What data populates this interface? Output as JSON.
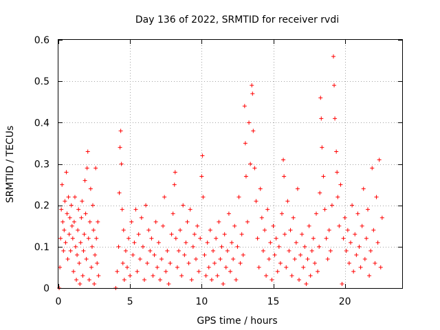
{
  "chart_data": {
    "type": "scatter",
    "title": "Day 136 of 2022, SRMTID for receiver rvdi",
    "xlabel": "GPS time / hours",
    "ylabel": "SRMTID / TECUs",
    "xlim": [
      0,
      24
    ],
    "ylim": [
      0,
      0.6
    ],
    "xticks": [
      0,
      5,
      10,
      15,
      20
    ],
    "yticks": [
      0,
      0.1,
      0.2,
      0.3,
      0.4,
      0.5,
      0.6
    ],
    "xtick_labels": [
      "0",
      "5",
      "10",
      "15",
      "20"
    ],
    "ytick_labels": [
      "0",
      "0.1",
      "0.2",
      "0.3",
      "0.4",
      "0.5",
      "0.6"
    ],
    "grid": true,
    "marker": "+",
    "color": "#ff0000",
    "series": [
      {
        "name": "SRMTID",
        "points": [
          [
            0.05,
            0.0
          ],
          [
            0.1,
            0.05
          ],
          [
            0.15,
            0.12
          ],
          [
            0.2,
            0.19
          ],
          [
            0.25,
            0.25
          ],
          [
            0.3,
            0.16
          ],
          [
            0.35,
            0.09
          ],
          [
            0.4,
            0.14
          ],
          [
            0.45,
            0.21
          ],
          [
            0.5,
            0.11
          ],
          [
            0.55,
            0.28
          ],
          [
            0.6,
            0.18
          ],
          [
            0.65,
            0.07
          ],
          [
            0.7,
            0.22
          ],
          [
            0.75,
            0.13
          ],
          [
            0.8,
            0.17
          ],
          [
            0.85,
            0.09
          ],
          [
            0.9,
            0.2
          ],
          [
            0.95,
            0.15
          ],
          [
            1.0,
            0.12
          ],
          [
            1.05,
            0.04
          ],
          [
            1.1,
            0.16
          ],
          [
            1.15,
            0.22
          ],
          [
            1.2,
            0.1
          ],
          [
            1.25,
            0.02
          ],
          [
            1.3,
            0.08
          ],
          [
            1.35,
            0.14
          ],
          [
            1.4,
            0.19
          ],
          [
            1.45,
            0.06
          ],
          [
            1.5,
            0.01
          ],
          [
            1.55,
            0.11
          ],
          [
            1.6,
            0.17
          ],
          [
            1.65,
            0.21
          ],
          [
            1.7,
            0.03
          ],
          [
            1.75,
            0.09
          ],
          [
            1.8,
            0.13
          ],
          [
            1.85,
            0.26
          ],
          [
            1.9,
            0.18
          ],
          [
            1.95,
            0.07
          ],
          [
            2.0,
            0.29
          ],
          [
            2.05,
            0.33
          ],
          [
            2.1,
            0.12
          ],
          [
            2.15,
            0.02
          ],
          [
            2.2,
            0.16
          ],
          [
            2.25,
            0.24
          ],
          [
            2.3,
            0.05
          ],
          [
            2.35,
            0.1
          ],
          [
            2.4,
            0.2
          ],
          [
            2.45,
            0.14
          ],
          [
            2.5,
            0.01
          ],
          [
            2.55,
            0.08
          ],
          [
            2.6,
            0.29
          ],
          [
            2.65,
            0.12
          ],
          [
            2.7,
            0.06
          ],
          [
            2.75,
            0.16
          ],
          [
            2.8,
            0.03
          ],
          [
            4.0,
            0.0
          ],
          [
            4.1,
            0.04
          ],
          [
            4.2,
            0.1
          ],
          [
            4.25,
            0.23
          ],
          [
            4.3,
            0.34
          ],
          [
            4.35,
            0.38
          ],
          [
            4.4,
            0.3
          ],
          [
            4.45,
            0.19
          ],
          [
            4.5,
            0.06
          ],
          [
            4.55,
            0.14
          ],
          [
            4.6,
            0.02
          ],
          [
            4.7,
            0.09
          ],
          [
            4.8,
            0.05
          ],
          [
            4.9,
            0.12
          ],
          [
            5.0,
            0.03
          ],
          [
            5.1,
            0.16
          ],
          [
            5.2,
            0.08
          ],
          [
            5.3,
            0.11
          ],
          [
            5.4,
            0.19
          ],
          [
            5.5,
            0.04
          ],
          [
            5.6,
            0.13
          ],
          [
            5.7,
            0.07
          ],
          [
            5.8,
            0.17
          ],
          [
            5.9,
            0.1
          ],
          [
            6.0,
            0.02
          ],
          [
            6.1,
            0.2
          ],
          [
            6.2,
            0.06
          ],
          [
            6.3,
            0.14
          ],
          [
            6.4,
            0.09
          ],
          [
            6.5,
            0.12
          ],
          [
            6.6,
            0.03
          ],
          [
            6.7,
            0.08
          ],
          [
            6.8,
            0.16
          ],
          [
            6.9,
            0.05
          ],
          [
            7.0,
            0.11
          ],
          [
            7.1,
            0.02
          ],
          [
            7.2,
            0.07
          ],
          [
            7.3,
            0.15
          ],
          [
            7.4,
            0.22
          ],
          [
            7.5,
            0.04
          ],
          [
            7.6,
            0.09
          ],
          [
            7.7,
            0.01
          ],
          [
            7.8,
            0.06
          ],
          [
            7.9,
            0.13
          ],
          [
            8.0,
            0.18
          ],
          [
            8.1,
            0.25
          ],
          [
            8.15,
            0.28
          ],
          [
            8.2,
            0.12
          ],
          [
            8.3,
            0.05
          ],
          [
            8.4,
            0.09
          ],
          [
            8.5,
            0.14
          ],
          [
            8.6,
            0.03
          ],
          [
            8.7,
            0.2
          ],
          [
            8.8,
            0.08
          ],
          [
            8.9,
            0.11
          ],
          [
            9.0,
            0.16
          ],
          [
            9.1,
            0.06
          ],
          [
            9.2,
            0.19
          ],
          [
            9.3,
            0.02
          ],
          [
            9.4,
            0.1
          ],
          [
            9.5,
            0.13
          ],
          [
            9.6,
            0.07
          ],
          [
            9.7,
            0.15
          ],
          [
            9.8,
            0.04
          ],
          [
            9.9,
            0.12
          ],
          [
            10.0,
            0.27
          ],
          [
            10.05,
            0.32
          ],
          [
            10.1,
            0.22
          ],
          [
            10.2,
            0.08
          ],
          [
            10.3,
            0.03
          ],
          [
            10.4,
            0.11
          ],
          [
            10.5,
            0.05
          ],
          [
            10.6,
            0.14
          ],
          [
            10.7,
            0.02
          ],
          [
            10.8,
            0.09
          ],
          [
            10.9,
            0.06
          ],
          [
            11.0,
            0.12
          ],
          [
            11.1,
            0.03
          ],
          [
            11.2,
            0.16
          ],
          [
            11.3,
            0.07
          ],
          [
            11.4,
            0.1
          ],
          [
            11.5,
            0.01
          ],
          [
            11.6,
            0.13
          ],
          [
            11.7,
            0.05
          ],
          [
            11.8,
            0.09
          ],
          [
            11.9,
            0.18
          ],
          [
            12.0,
            0.04
          ],
          [
            12.1,
            0.11
          ],
          [
            12.2,
            0.07
          ],
          [
            12.3,
            0.15
          ],
          [
            12.4,
            0.02
          ],
          [
            12.5,
            0.1
          ],
          [
            12.6,
            0.22
          ],
          [
            12.7,
            0.06
          ],
          [
            12.8,
            0.13
          ],
          [
            12.9,
            0.08
          ],
          [
            13.0,
            0.44
          ],
          [
            13.05,
            0.35
          ],
          [
            13.1,
            0.27
          ],
          [
            13.2,
            0.16
          ],
          [
            13.3,
            0.4
          ],
          [
            13.4,
            0.3
          ],
          [
            13.5,
            0.49
          ],
          [
            13.55,
            0.47
          ],
          [
            13.6,
            0.38
          ],
          [
            13.7,
            0.29
          ],
          [
            13.8,
            0.21
          ],
          [
            13.9,
            0.12
          ],
          [
            14.0,
            0.05
          ],
          [
            14.1,
            0.24
          ],
          [
            14.2,
            0.17
          ],
          [
            14.3,
            0.09
          ],
          [
            14.4,
            0.14
          ],
          [
            14.5,
            0.03
          ],
          [
            14.6,
            0.19
          ],
          [
            14.7,
            0.07
          ],
          [
            14.8,
            0.11
          ],
          [
            14.9,
            0.02
          ],
          [
            15.0,
            0.15
          ],
          [
            15.1,
            0.08
          ],
          [
            15.2,
            0.12
          ],
          [
            15.3,
            0.04
          ],
          [
            15.4,
            0.1
          ],
          [
            15.5,
            0.06
          ],
          [
            15.6,
            0.18
          ],
          [
            15.7,
            0.31
          ],
          [
            15.75,
            0.27
          ],
          [
            15.8,
            0.13
          ],
          [
            15.9,
            0.05
          ],
          [
            16.0,
            0.21
          ],
          [
            16.1,
            0.09
          ],
          [
            16.2,
            0.14
          ],
          [
            16.3,
            0.03
          ],
          [
            16.4,
            0.17
          ],
          [
            16.5,
            0.07
          ],
          [
            16.6,
            0.11
          ],
          [
            16.7,
            0.24
          ],
          [
            16.8,
            0.02
          ],
          [
            16.9,
            0.08
          ],
          [
            17.0,
            0.13
          ],
          [
            17.1,
            0.05
          ],
          [
            17.2,
            0.1
          ],
          [
            17.3,
            0.01
          ],
          [
            17.4,
            0.07
          ],
          [
            17.5,
            0.15
          ],
          [
            17.6,
            0.03
          ],
          [
            17.7,
            0.09
          ],
          [
            17.8,
            0.12
          ],
          [
            17.9,
            0.06
          ],
          [
            18.0,
            0.18
          ],
          [
            18.1,
            0.04
          ],
          [
            18.2,
            0.1
          ],
          [
            18.25,
            0.23
          ],
          [
            18.3,
            0.46
          ],
          [
            18.35,
            0.41
          ],
          [
            18.4,
            0.34
          ],
          [
            18.5,
            0.27
          ],
          [
            18.6,
            0.19
          ],
          [
            18.7,
            0.12
          ],
          [
            18.8,
            0.07
          ],
          [
            18.9,
            0.14
          ],
          [
            19.0,
            0.09
          ],
          [
            19.1,
            0.2
          ],
          [
            19.2,
            0.56
          ],
          [
            19.25,
            0.49
          ],
          [
            19.3,
            0.41
          ],
          [
            19.4,
            0.33
          ],
          [
            19.45,
            0.28
          ],
          [
            19.5,
            0.22
          ],
          [
            19.6,
            0.15
          ],
          [
            19.7,
            0.25
          ],
          [
            19.8,
            0.01
          ],
          [
            19.9,
            0.12
          ],
          [
            20.0,
            0.17
          ],
          [
            20.1,
            0.09
          ],
          [
            20.2,
            0.14
          ],
          [
            20.3,
            0.06
          ],
          [
            20.4,
            0.11
          ],
          [
            20.5,
            0.2
          ],
          [
            20.6,
            0.04
          ],
          [
            20.7,
            0.13
          ],
          [
            20.8,
            0.08
          ],
          [
            20.9,
            0.18
          ],
          [
            21.0,
            0.1
          ],
          [
            21.1,
            0.05
          ],
          [
            21.2,
            0.15
          ],
          [
            21.3,
            0.24
          ],
          [
            21.4,
            0.07
          ],
          [
            21.5,
            0.12
          ],
          [
            21.6,
            0.19
          ],
          [
            21.7,
            0.03
          ],
          [
            21.8,
            0.09
          ],
          [
            21.9,
            0.29
          ],
          [
            22.0,
            0.14
          ],
          [
            22.1,
            0.06
          ],
          [
            22.2,
            0.22
          ],
          [
            22.3,
            0.11
          ],
          [
            22.4,
            0.31
          ],
          [
            22.5,
            0.05
          ],
          [
            22.6,
            0.17
          ]
        ]
      }
    ]
  }
}
